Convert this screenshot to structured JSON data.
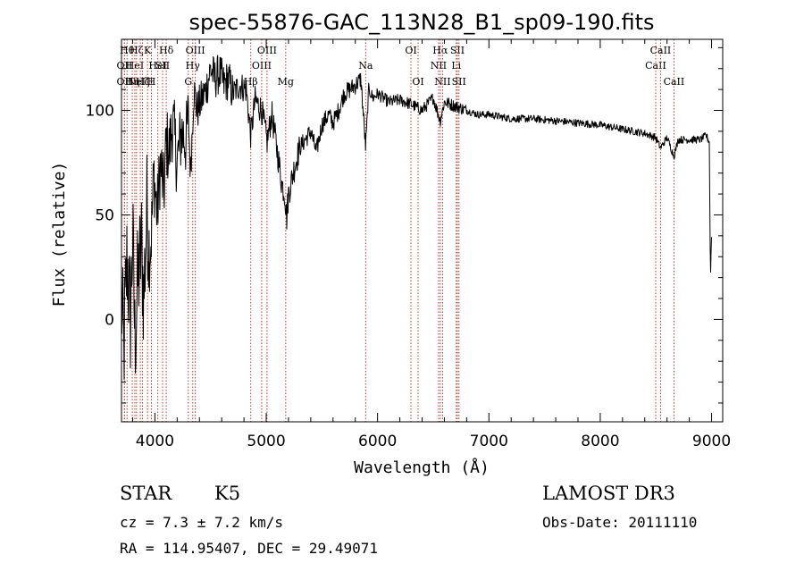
{
  "chart_data": {
    "type": "line",
    "title": "spec-55876-GAC_113N28_B1_sp09-190.fits",
    "xlabel": "Wavelength (Å)",
    "ylabel": "Flux (relative)",
    "xlim": [
      3700,
      9100
    ],
    "ylim": [
      -49,
      134
    ],
    "xticks": [
      4000,
      5000,
      6000,
      7000,
      8000,
      9000
    ],
    "yticks": [
      0,
      50,
      100
    ],
    "grid": false,
    "spectrum_anchors": {
      "x": [
        3700,
        3720,
        3750,
        3780,
        3800,
        3820,
        3850,
        3880,
        3900,
        3930,
        3950,
        3968,
        3990,
        4020,
        4050,
        4080,
        4102,
        4130,
        4160,
        4200,
        4240,
        4280,
        4300,
        4320,
        4350,
        4380,
        4420,
        4460,
        4500,
        4540,
        4580,
        4620,
        4660,
        4700,
        4760,
        4820,
        4861,
        4900,
        4960,
        5007,
        5050,
        5100,
        5140,
        5167,
        5183,
        5200,
        5250,
        5300,
        5400,
        5450,
        5500,
        5560,
        5600,
        5650,
        5700,
        5750,
        5800,
        5850,
        5893,
        5920,
        5960,
        6000,
        6100,
        6200,
        6300,
        6400,
        6500,
        6563,
        6600,
        6700,
        6800,
        6900,
        7000,
        7100,
        7200,
        7400,
        7600,
        7800,
        8000,
        8200,
        8400,
        8498,
        8542,
        8600,
        8662,
        8700,
        8800,
        8900,
        8950,
        8980,
        8990,
        9000
      ],
      "y": [
        10,
        -15,
        30,
        0,
        40,
        -10,
        20,
        35,
        10,
        55,
        30,
        40,
        70,
        50,
        75,
        60,
        85,
        80,
        95,
        75,
        90,
        85,
        98,
        70,
        110,
        100,
        105,
        110,
        120,
        115,
        118,
        112,
        115,
        108,
        112,
        110,
        88,
        105,
        100,
        85,
        98,
        80,
        65,
        60,
        48,
        60,
        72,
        82,
        90,
        80,
        93,
        98,
        94,
        100,
        108,
        110,
        112,
        115,
        82,
        110,
        106,
        108,
        104,
        105,
        103,
        100,
        106,
        95,
        104,
        102,
        100,
        98,
        98,
        97,
        96,
        96,
        95,
        94,
        93,
        91,
        89,
        87,
        82,
        87,
        78,
        86,
        86,
        86,
        88,
        85,
        20,
        40
      ]
    },
    "line_markers": [
      {
        "wl": 3750,
        "label": "Hθ",
        "row": 1
      },
      {
        "wl": 3727,
        "label": "OII",
        "row": 2
      },
      {
        "wl": 3727,
        "label": "OII",
        "row": 3
      },
      {
        "wl": 3797,
        "label": "Hη",
        "row": 3
      },
      {
        "wl": 3820,
        "label": "HeI",
        "row": 2
      },
      {
        "wl": 3835,
        "label": "Hζ",
        "row": 1
      },
      {
        "wl": 3869,
        "label": "NeIII",
        "row": 3
      },
      {
        "wl": 3889,
        "label": "Hζ",
        "row": 3
      },
      {
        "wl": 3934,
        "label": "K",
        "row": 1
      },
      {
        "wl": 3969,
        "label": "H",
        "row": 3
      },
      {
        "wl": 4026,
        "label": "HeI",
        "row": 2
      },
      {
        "wl": 4069,
        "label": "SII",
        "row": 2
      },
      {
        "wl": 4102,
        "label": "Hδ",
        "row": 1
      },
      {
        "wl": 4300,
        "label": "G",
        "row": 3
      },
      {
        "wl": 4340,
        "label": "Hγ",
        "row": 2
      },
      {
        "wl": 4363,
        "label": "OIII",
        "row": 1
      },
      {
        "wl": 4861,
        "label": "Hβ",
        "row": 3
      },
      {
        "wl": 4959,
        "label": "OIII",
        "row": 2
      },
      {
        "wl": 5007,
        "label": "OIII",
        "row": 1
      },
      {
        "wl": 5175,
        "label": "Mg",
        "row": 3
      },
      {
        "wl": 5893,
        "label": "Na",
        "row": 2
      },
      {
        "wl": 6300,
        "label": "OI",
        "row": 1
      },
      {
        "wl": 6364,
        "label": "OI",
        "row": 3
      },
      {
        "wl": 6548,
        "label": "NII",
        "row": 2
      },
      {
        "wl": 6563,
        "label": "Hα",
        "row": 1
      },
      {
        "wl": 6584,
        "label": "NII",
        "row": 3
      },
      {
        "wl": 6707,
        "label": "Li",
        "row": 2
      },
      {
        "wl": 6717,
        "label": "SII",
        "row": 1
      },
      {
        "wl": 6731,
        "label": "SII",
        "row": 3
      },
      {
        "wl": 8498,
        "label": "CaII",
        "row": 2
      },
      {
        "wl": 8542,
        "label": "CaII",
        "row": 1
      },
      {
        "wl": 8662,
        "label": "CaII",
        "row": 3
      }
    ]
  },
  "info": {
    "object_class": "STAR",
    "subclass": "K5",
    "survey": "LAMOST DR3",
    "redshift": "cz = 7.3 ± 7.2 km/s",
    "obs_date": "Obs-Date: 20111110",
    "coords": "RA = 114.95407, DEC =  29.49071"
  },
  "colors": {
    "spectrum": "#000000",
    "marker": "#c0392b",
    "background": "#ffffff"
  }
}
